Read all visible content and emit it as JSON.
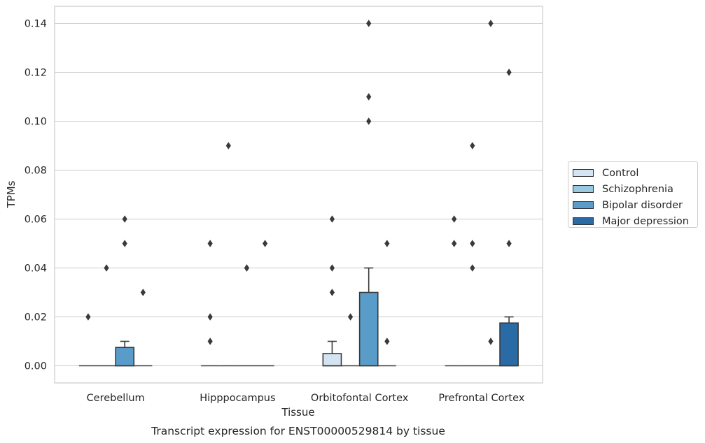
{
  "chart_data": {
    "type": "box",
    "title": "",
    "xlabel": "Tissue",
    "ylabel": "TPMs",
    "caption": "Transcript expression for ENST00000529814 by tissue",
    "ylim": [
      -0.007,
      0.147
    ],
    "yticks": [
      "0.00",
      "0.02",
      "0.04",
      "0.06",
      "0.08",
      "0.10",
      "0.12",
      "0.14"
    ],
    "ytick_values": [
      0,
      0.02,
      0.04,
      0.06,
      0.08,
      0.1,
      0.12,
      0.14
    ],
    "grid": "horizontal",
    "legend_position": "outside-right",
    "categories": [
      "Cerebellum",
      "Hipppocampus",
      "Orbitofontal Cortex",
      "Prefrontal Cortex"
    ],
    "series": [
      {
        "name": "Control",
        "color": "#d4e4f2",
        "boxes": [
          {
            "q1": 0,
            "median": 0,
            "q3": 0,
            "whisker_low": 0,
            "whisker_high": 0,
            "outliers": [
              0.02
            ]
          },
          {
            "q1": 0,
            "median": 0,
            "q3": 0,
            "whisker_low": 0,
            "whisker_high": 0,
            "outliers": [
              0.01,
              0.02,
              0.05
            ]
          },
          {
            "q1": 0,
            "median": 0,
            "q3": 0.005,
            "whisker_low": 0,
            "whisker_high": 0.01,
            "outliers": [
              0.03,
              0.04,
              0.06
            ]
          },
          {
            "q1": 0,
            "median": 0,
            "q3": 0,
            "whisker_low": 0,
            "whisker_high": 0,
            "outliers": [
              0.05,
              0.06
            ]
          }
        ]
      },
      {
        "name": "Schizophrenia",
        "color": "#9ac8e0",
        "boxes": [
          {
            "q1": 0,
            "median": 0,
            "q3": 0,
            "whisker_low": 0,
            "whisker_high": 0,
            "outliers": [
              0.04
            ]
          },
          {
            "q1": 0,
            "median": 0,
            "q3": 0,
            "whisker_low": 0,
            "whisker_high": 0,
            "outliers": [
              0.09
            ]
          },
          {
            "q1": 0,
            "median": 0,
            "q3": 0,
            "whisker_low": 0,
            "whisker_high": 0,
            "outliers": [
              0.02
            ]
          },
          {
            "q1": 0,
            "median": 0,
            "q3": 0,
            "whisker_low": 0,
            "whisker_high": 0,
            "outliers": [
              0.04,
              0.05,
              0.09
            ]
          }
        ]
      },
      {
        "name": "Bipolar disorder",
        "color": "#5a9cc9",
        "boxes": [
          {
            "q1": 0,
            "median": 0,
            "q3": 0.0075,
            "whisker_low": 0,
            "whisker_high": 0.01,
            "outliers": [
              0.05,
              0.06
            ]
          },
          {
            "q1": 0,
            "median": 0,
            "q3": 0,
            "whisker_low": 0,
            "whisker_high": 0,
            "outliers": [
              0.04,
              0.04
            ]
          },
          {
            "q1": 0,
            "median": 0,
            "q3": 0.03,
            "whisker_low": 0,
            "whisker_high": 0.04,
            "outliers": [
              0.1,
              0.11,
              0.14
            ]
          },
          {
            "q1": 0,
            "median": 0,
            "q3": 0,
            "whisker_low": 0,
            "whisker_high": 0,
            "outliers": [
              0.01,
              0.14
            ]
          }
        ]
      },
      {
        "name": "Major depression",
        "color": "#2a6aa5",
        "boxes": [
          {
            "q1": 0,
            "median": 0,
            "q3": 0,
            "whisker_low": 0,
            "whisker_high": 0,
            "outliers": [
              0.03
            ]
          },
          {
            "q1": 0,
            "median": 0,
            "q3": 0,
            "whisker_low": 0,
            "whisker_high": 0,
            "outliers": [
              0.05
            ]
          },
          {
            "q1": 0,
            "median": 0,
            "q3": 0,
            "whisker_low": 0,
            "whisker_high": 0,
            "outliers": [
              0.01,
              0.05
            ]
          },
          {
            "q1": 0,
            "median": 0,
            "q3": 0.0175,
            "whisker_low": 0,
            "whisker_high": 0.02,
            "outliers": [
              0.05,
              0.12
            ]
          }
        ]
      }
    ]
  }
}
